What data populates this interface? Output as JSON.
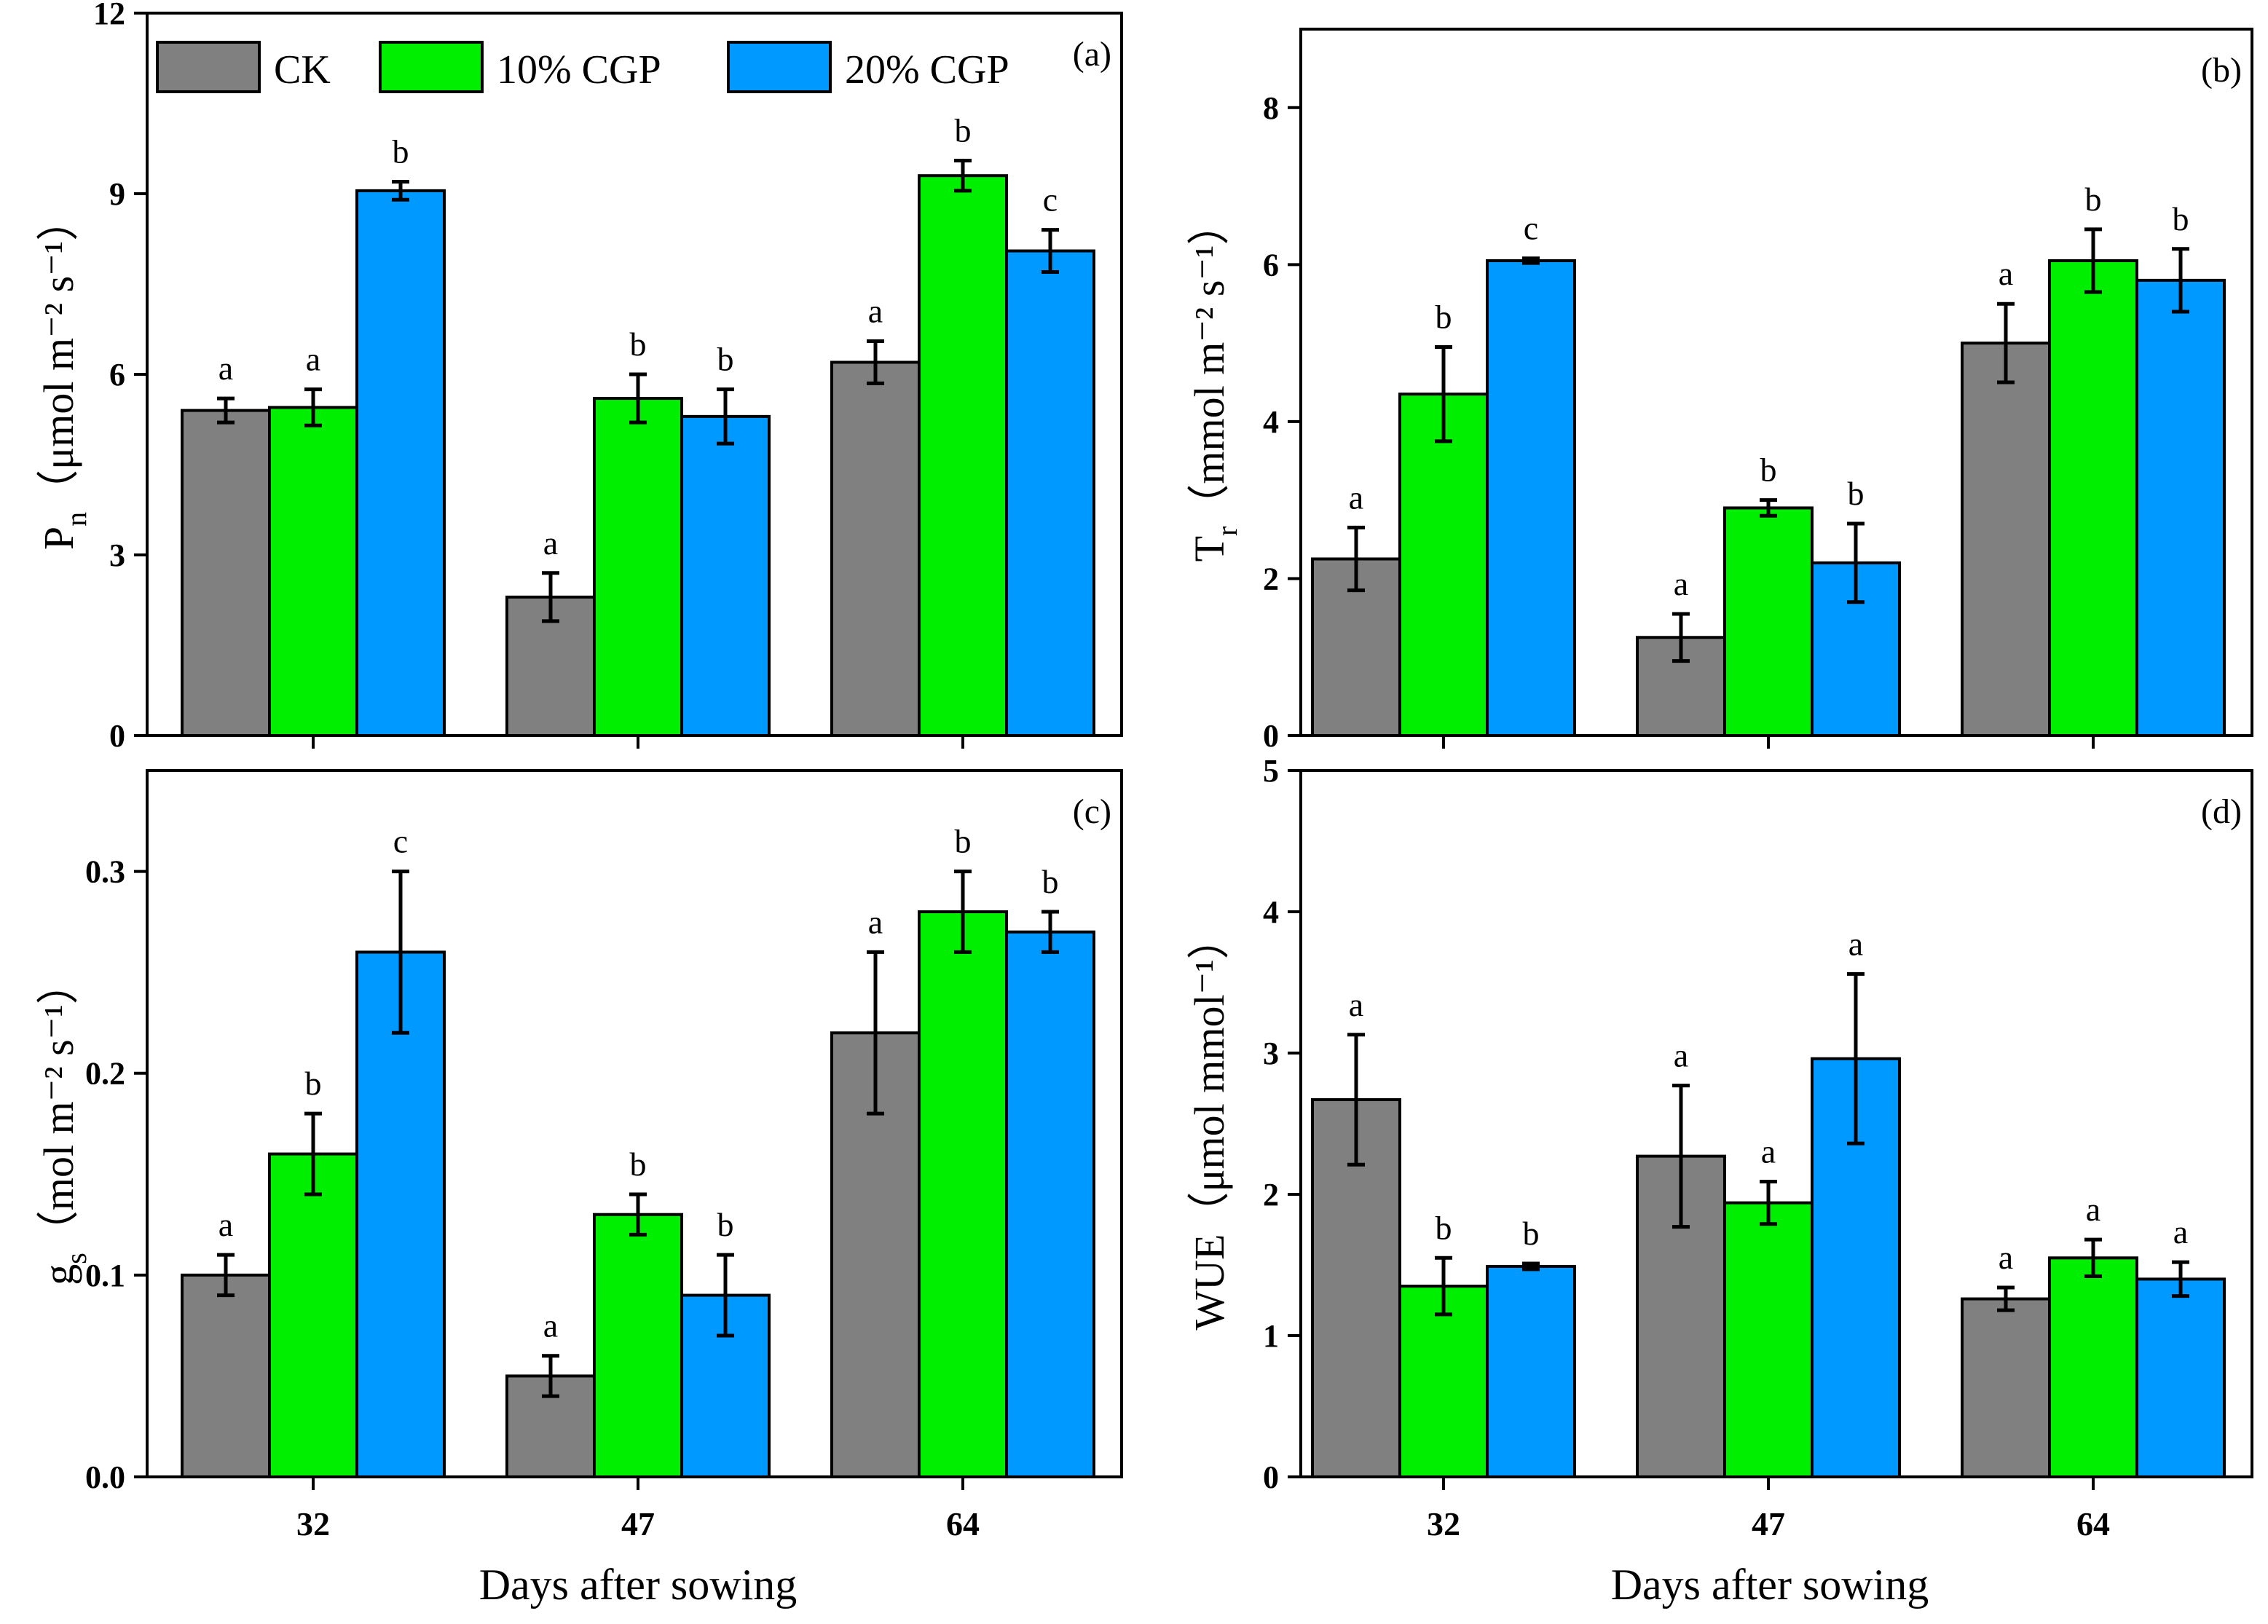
{
  "figure": {
    "xlabel": "Days after sowing",
    "legend": [
      "CK",
      "10% CGP",
      "20% CGP"
    ],
    "colors": {
      "CK": "#808080",
      "10% CGP": "#00ee00",
      "20% CGP": "#0099ff"
    }
  },
  "chart_data": [
    {
      "type": "bar",
      "panel": "(a)",
      "ylabel_main": "P",
      "ylabel_sub": "n",
      "ylabel_unit": "（μmol m⁻² s⁻¹）",
      "categories": [
        "32",
        "47",
        "64"
      ],
      "ylim": [
        0,
        12
      ],
      "yticks": [
        "0",
        "3",
        "6",
        "9",
        "12"
      ],
      "series": [
        {
          "name": "CK",
          "values": [
            5.4,
            2.3,
            6.2
          ],
          "errors": [
            0.2,
            0.4,
            0.35
          ],
          "letters": [
            "a",
            "a",
            "a"
          ]
        },
        {
          "name": "10% CGP",
          "values": [
            5.45,
            5.6,
            9.3
          ],
          "errors": [
            0.3,
            0.4,
            0.25
          ],
          "letters": [
            "a",
            "b",
            "b"
          ]
        },
        {
          "name": "20% CGP",
          "values": [
            9.05,
            5.3,
            8.05
          ],
          "errors": [
            0.15,
            0.45,
            0.35
          ],
          "letters": [
            "b",
            "b",
            "c"
          ]
        }
      ],
      "legend_position": "top-left"
    },
    {
      "type": "bar",
      "panel": "(b)",
      "ylabel_main": "T",
      "ylabel_sub": "r",
      "ylabel_unit": "（mmol m⁻² s⁻¹）",
      "categories": [
        "32",
        "47",
        "64"
      ],
      "ylim": [
        0,
        9
      ],
      "yticks": [
        "0",
        "2",
        "4",
        "6",
        "8"
      ],
      "series": [
        {
          "name": "CK",
          "values": [
            2.25,
            1.25,
            5.0
          ],
          "errors": [
            0.4,
            0.3,
            0.5
          ],
          "letters": [
            "a",
            "a",
            "a"
          ]
        },
        {
          "name": "10% CGP",
          "values": [
            4.35,
            2.9,
            6.05
          ],
          "errors": [
            0.6,
            0.1,
            0.4
          ],
          "letters": [
            "b",
            "b",
            "b"
          ]
        },
        {
          "name": "20% CGP",
          "values": [
            6.05,
            2.2,
            5.8
          ],
          "errors": [
            0.03,
            0.5,
            0.4
          ],
          "letters": [
            "c",
            "b",
            "b"
          ]
        }
      ]
    },
    {
      "type": "bar",
      "panel": "(c)",
      "ylabel_main": "g",
      "ylabel_sub": "s",
      "ylabel_unit": "（mol m⁻² s⁻¹）",
      "categories": [
        "32",
        "47",
        "64"
      ],
      "ylim": [
        0,
        0.35
      ],
      "yticks": [
        "0.0",
        "0.1",
        "0.2",
        "0.3"
      ],
      "series": [
        {
          "name": "CK",
          "values": [
            0.1,
            0.05,
            0.22
          ],
          "errors": [
            0.01,
            0.01,
            0.04
          ],
          "letters": [
            "a",
            "a",
            "a"
          ]
        },
        {
          "name": "10% CGP",
          "values": [
            0.16,
            0.13,
            0.28
          ],
          "errors": [
            0.02,
            0.01,
            0.02
          ],
          "letters": [
            "b",
            "b",
            "b"
          ]
        },
        {
          "name": "20% CGP",
          "values": [
            0.26,
            0.09,
            0.27
          ],
          "errors": [
            0.04,
            0.02,
            0.01
          ],
          "letters": [
            "c",
            "b",
            "b"
          ]
        }
      ]
    },
    {
      "type": "bar",
      "panel": "(d)",
      "ylabel_main": "WUE",
      "ylabel_sub": "",
      "ylabel_unit": "（μmol mmol⁻¹）",
      "categories": [
        "32",
        "47",
        "64"
      ],
      "ylim": [
        0,
        5
      ],
      "yticks": [
        "0",
        "1",
        "2",
        "3",
        "4",
        "5"
      ],
      "series": [
        {
          "name": "CK",
          "values": [
            2.67,
            2.27,
            1.26
          ],
          "errors": [
            0.46,
            0.5,
            0.08
          ],
          "letters": [
            "a",
            "a",
            "a"
          ]
        },
        {
          "name": "10% CGP",
          "values": [
            1.35,
            1.94,
            1.55
          ],
          "errors": [
            0.2,
            0.15,
            0.13
          ],
          "letters": [
            "b",
            "a",
            "a"
          ]
        },
        {
          "name": "20% CGP",
          "values": [
            1.49,
            2.96,
            1.4
          ],
          "errors": [
            0.02,
            0.6,
            0.12
          ],
          "letters": [
            "b",
            "a",
            "a"
          ]
        }
      ]
    }
  ]
}
